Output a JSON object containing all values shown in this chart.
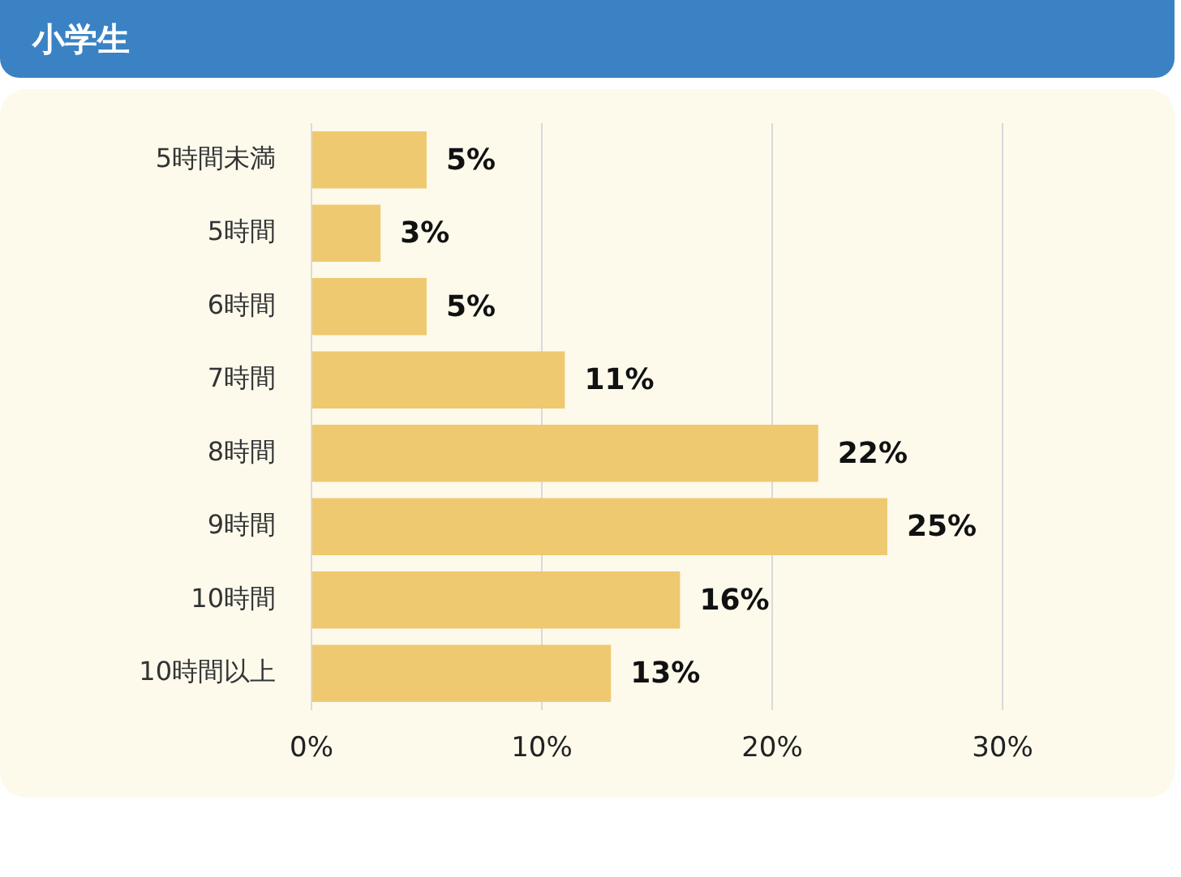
{
  "chart_data": {
    "type": "bar",
    "orientation": "horizontal",
    "title": "小学生",
    "categories": [
      "5時間未満",
      "5時間",
      "6時間",
      "7時間",
      "8時間",
      "9時間",
      "10時間",
      "10時間以上"
    ],
    "values": [
      5,
      3,
      5,
      11,
      22,
      25,
      16,
      13
    ],
    "value_labels": [
      "5%",
      "3%",
      "5%",
      "11%",
      "22%",
      "25%",
      "16%",
      "13%"
    ],
    "color": "#efc970",
    "xlim": [
      0,
      30
    ],
    "xticks": [
      {
        "value": 0,
        "label": "0%"
      },
      {
        "value": 10,
        "label": "10%"
      },
      {
        "value": 20,
        "label": "20%"
      },
      {
        "value": 30,
        "label": "30%"
      }
    ],
    "grid": "x"
  }
}
